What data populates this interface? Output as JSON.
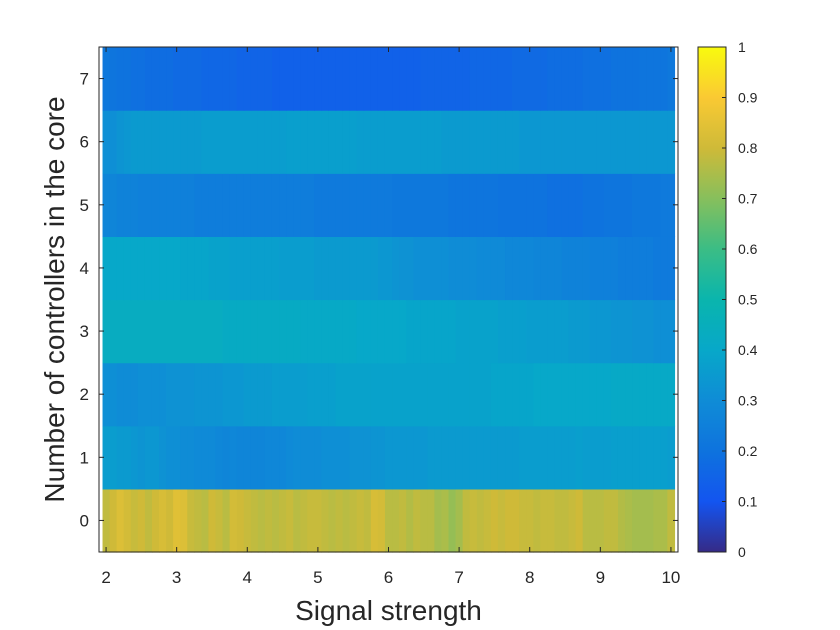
{
  "chart_data": {
    "type": "heatmap",
    "title": "",
    "xlabel": "Signal strength",
    "ylabel": "Number of controllers in the core",
    "colormap": "parula",
    "xlim": [
      1.9,
      10.1
    ],
    "ylim": [
      -0.5,
      7.5
    ],
    "x_ticks": [
      "2",
      "3",
      "4",
      "5",
      "6",
      "7",
      "8",
      "9",
      "10"
    ],
    "y_ticks": [
      "0",
      "1",
      "2",
      "3",
      "4",
      "5",
      "6",
      "7"
    ],
    "colorbar": {
      "range": [
        0,
        1
      ],
      "ticks": [
        "0",
        "0.1",
        "0.2",
        "0.3",
        "0.4",
        "0.5",
        "0.6",
        "0.7",
        "0.8",
        "0.9",
        "1"
      ]
    },
    "x": [
      2.0,
      2.1,
      2.2,
      2.3,
      2.4,
      2.5,
      2.6,
      2.7,
      2.8,
      2.9,
      3.0,
      3.1,
      3.2,
      3.3,
      3.4,
      3.5,
      3.6,
      3.7,
      3.8,
      3.9,
      4.0,
      4.1,
      4.2,
      4.3,
      4.4,
      4.5,
      4.6,
      4.7,
      4.8,
      4.9,
      5.0,
      5.1,
      5.2,
      5.3,
      5.4,
      5.5,
      5.6,
      5.7,
      5.8,
      5.9,
      6.0,
      6.1,
      6.2,
      6.3,
      6.4,
      6.5,
      6.6,
      6.7,
      6.8,
      6.9,
      7.0,
      7.1,
      7.2,
      7.3,
      7.4,
      7.5,
      7.6,
      7.7,
      7.8,
      7.9,
      8.0,
      8.1,
      8.2,
      8.3,
      8.4,
      8.5,
      8.6,
      8.7,
      8.8,
      8.9,
      9.0,
      9.1,
      9.2,
      9.3,
      9.4,
      9.5,
      9.6,
      9.7,
      9.8,
      9.9,
      10.0
    ],
    "y": [
      0,
      1,
      2,
      3,
      4,
      5,
      6,
      7
    ],
    "z_rows": [
      [
        0.78,
        0.8,
        0.83,
        0.81,
        0.79,
        0.8,
        0.78,
        0.8,
        0.82,
        0.8,
        0.84,
        0.83,
        0.79,
        0.78,
        0.77,
        0.8,
        0.79,
        0.77,
        0.81,
        0.8,
        0.79,
        0.78,
        0.77,
        0.78,
        0.77,
        0.78,
        0.79,
        0.77,
        0.78,
        0.79,
        0.79,
        0.78,
        0.77,
        0.78,
        0.77,
        0.78,
        0.79,
        0.78,
        0.82,
        0.81,
        0.77,
        0.77,
        0.78,
        0.76,
        0.78,
        0.77,
        0.77,
        0.74,
        0.75,
        0.72,
        0.74,
        0.78,
        0.79,
        0.78,
        0.79,
        0.8,
        0.79,
        0.8,
        0.8,
        0.79,
        0.79,
        0.78,
        0.79,
        0.79,
        0.78,
        0.78,
        0.79,
        0.8,
        0.77,
        0.77,
        0.77,
        0.78,
        0.78,
        0.76,
        0.75,
        0.74,
        0.74,
        0.74,
        0.75,
        0.75,
        0.78
      ],
      [
        0.36,
        0.36,
        0.35,
        0.35,
        0.34,
        0.33,
        0.34,
        0.34,
        0.32,
        0.31,
        0.31,
        0.3,
        0.3,
        0.29,
        0.29,
        0.29,
        0.28,
        0.27,
        0.28,
        0.27,
        0.27,
        0.27,
        0.27,
        0.28,
        0.28,
        0.28,
        0.29,
        0.3,
        0.3,
        0.3,
        0.3,
        0.31,
        0.31,
        0.31,
        0.31,
        0.32,
        0.32,
        0.32,
        0.33,
        0.33,
        0.34,
        0.34,
        0.34,
        0.34,
        0.34,
        0.34,
        0.35,
        0.35,
        0.35,
        0.35,
        0.35,
        0.35,
        0.35,
        0.35,
        0.35,
        0.35,
        0.35,
        0.35,
        0.35,
        0.36,
        0.36,
        0.36,
        0.36,
        0.36,
        0.36,
        0.36,
        0.36,
        0.37,
        0.36,
        0.36,
        0.36,
        0.36,
        0.37,
        0.37,
        0.37,
        0.37,
        0.37,
        0.37,
        0.37,
        0.37,
        0.36
      ],
      [
        0.31,
        0.31,
        0.3,
        0.3,
        0.3,
        0.31,
        0.31,
        0.31,
        0.31,
        0.32,
        0.32,
        0.32,
        0.32,
        0.33,
        0.33,
        0.33,
        0.33,
        0.34,
        0.34,
        0.34,
        0.35,
        0.35,
        0.35,
        0.35,
        0.36,
        0.36,
        0.36,
        0.36,
        0.36,
        0.37,
        0.37,
        0.37,
        0.37,
        0.38,
        0.38,
        0.38,
        0.38,
        0.38,
        0.38,
        0.38,
        0.38,
        0.38,
        0.38,
        0.38,
        0.38,
        0.38,
        0.38,
        0.38,
        0.38,
        0.38,
        0.38,
        0.38,
        0.38,
        0.38,
        0.38,
        0.39,
        0.39,
        0.39,
        0.39,
        0.39,
        0.39,
        0.4,
        0.4,
        0.4,
        0.4,
        0.4,
        0.4,
        0.4,
        0.4,
        0.4,
        0.4,
        0.4,
        0.41,
        0.41,
        0.41,
        0.41,
        0.41,
        0.41,
        0.41,
        0.41,
        0.41
      ],
      [
        0.43,
        0.43,
        0.43,
        0.43,
        0.43,
        0.43,
        0.43,
        0.43,
        0.43,
        0.43,
        0.43,
        0.43,
        0.43,
        0.43,
        0.43,
        0.43,
        0.43,
        0.42,
        0.42,
        0.42,
        0.42,
        0.42,
        0.42,
        0.42,
        0.42,
        0.42,
        0.42,
        0.42,
        0.41,
        0.41,
        0.41,
        0.41,
        0.41,
        0.41,
        0.41,
        0.41,
        0.4,
        0.4,
        0.4,
        0.4,
        0.4,
        0.4,
        0.4,
        0.39,
        0.39,
        0.39,
        0.39,
        0.39,
        0.39,
        0.39,
        0.38,
        0.38,
        0.38,
        0.38,
        0.38,
        0.38,
        0.37,
        0.37,
        0.37,
        0.37,
        0.36,
        0.36,
        0.36,
        0.36,
        0.36,
        0.36,
        0.35,
        0.35,
        0.35,
        0.34,
        0.34,
        0.34,
        0.33,
        0.33,
        0.33,
        0.32,
        0.32,
        0.32,
        0.31,
        0.31,
        0.31
      ],
      [
        0.4,
        0.4,
        0.4,
        0.4,
        0.4,
        0.4,
        0.4,
        0.4,
        0.4,
        0.4,
        0.4,
        0.39,
        0.39,
        0.39,
        0.39,
        0.38,
        0.38,
        0.38,
        0.37,
        0.37,
        0.37,
        0.37,
        0.37,
        0.37,
        0.37,
        0.36,
        0.36,
        0.36,
        0.36,
        0.36,
        0.35,
        0.35,
        0.35,
        0.35,
        0.35,
        0.35,
        0.35,
        0.35,
        0.35,
        0.34,
        0.34,
        0.33,
        0.32,
        0.32,
        0.31,
        0.31,
        0.31,
        0.31,
        0.31,
        0.3,
        0.3,
        0.3,
        0.3,
        0.29,
        0.29,
        0.29,
        0.29,
        0.28,
        0.28,
        0.28,
        0.28,
        0.27,
        0.27,
        0.27,
        0.27,
        0.26,
        0.26,
        0.26,
        0.26,
        0.25,
        0.25,
        0.25,
        0.25,
        0.24,
        0.24,
        0.24,
        0.24,
        0.24,
        0.23,
        0.23,
        0.23
      ],
      [
        0.27,
        0.27,
        0.26,
        0.26,
        0.26,
        0.25,
        0.25,
        0.25,
        0.25,
        0.25,
        0.25,
        0.25,
        0.25,
        0.24,
        0.24,
        0.24,
        0.24,
        0.24,
        0.24,
        0.24,
        0.24,
        0.24,
        0.24,
        0.24,
        0.24,
        0.24,
        0.24,
        0.24,
        0.24,
        0.24,
        0.23,
        0.23,
        0.23,
        0.23,
        0.23,
        0.23,
        0.23,
        0.23,
        0.23,
        0.23,
        0.23,
        0.22,
        0.22,
        0.22,
        0.22,
        0.22,
        0.22,
        0.22,
        0.22,
        0.21,
        0.21,
        0.21,
        0.21,
        0.21,
        0.21,
        0.21,
        0.2,
        0.2,
        0.2,
        0.2,
        0.2,
        0.2,
        0.2,
        0.19,
        0.19,
        0.19,
        0.19,
        0.19,
        0.2,
        0.2,
        0.2,
        0.21,
        0.21,
        0.21,
        0.21,
        0.22,
        0.22,
        0.22,
        0.22,
        0.23,
        0.23
      ],
      [
        0.31,
        0.31,
        0.33,
        0.34,
        0.35,
        0.35,
        0.35,
        0.35,
        0.35,
        0.35,
        0.35,
        0.35,
        0.35,
        0.35,
        0.36,
        0.36,
        0.36,
        0.36,
        0.36,
        0.36,
        0.36,
        0.36,
        0.36,
        0.36,
        0.36,
        0.36,
        0.37,
        0.37,
        0.37,
        0.37,
        0.37,
        0.37,
        0.37,
        0.37,
        0.37,
        0.37,
        0.36,
        0.36,
        0.36,
        0.36,
        0.36,
        0.36,
        0.36,
        0.36,
        0.36,
        0.36,
        0.36,
        0.36,
        0.35,
        0.35,
        0.35,
        0.35,
        0.35,
        0.35,
        0.35,
        0.35,
        0.35,
        0.35,
        0.35,
        0.34,
        0.34,
        0.34,
        0.34,
        0.34,
        0.34,
        0.34,
        0.34,
        0.34,
        0.34,
        0.34,
        0.34,
        0.34,
        0.34,
        0.34,
        0.34,
        0.34,
        0.34,
        0.34,
        0.34,
        0.34,
        0.34
      ],
      [
        0.22,
        0.21,
        0.2,
        0.2,
        0.19,
        0.19,
        0.18,
        0.18,
        0.18,
        0.18,
        0.17,
        0.17,
        0.17,
        0.17,
        0.16,
        0.16,
        0.16,
        0.16,
        0.16,
        0.15,
        0.15,
        0.15,
        0.15,
        0.15,
        0.14,
        0.14,
        0.14,
        0.14,
        0.14,
        0.14,
        0.14,
        0.14,
        0.14,
        0.14,
        0.14,
        0.14,
        0.14,
        0.14,
        0.14,
        0.14,
        0.14,
        0.14,
        0.14,
        0.14,
        0.14,
        0.15,
        0.15,
        0.15,
        0.15,
        0.15,
        0.15,
        0.15,
        0.16,
        0.16,
        0.16,
        0.16,
        0.16,
        0.16,
        0.17,
        0.17,
        0.17,
        0.17,
        0.17,
        0.18,
        0.18,
        0.18,
        0.18,
        0.18,
        0.19,
        0.19,
        0.19,
        0.19,
        0.2,
        0.2,
        0.2,
        0.2,
        0.21,
        0.21,
        0.21,
        0.21,
        0.22
      ]
    ]
  }
}
